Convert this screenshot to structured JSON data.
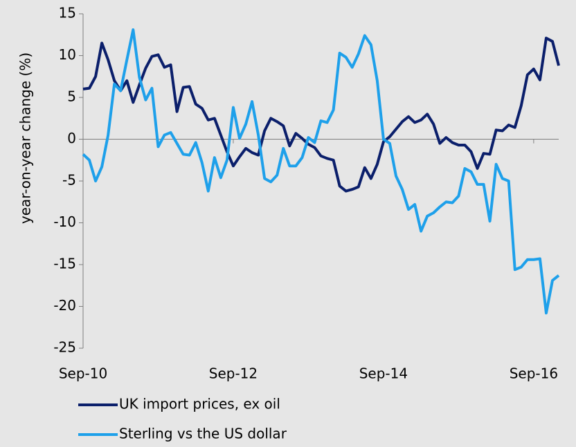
{
  "chart_data": {
    "type": "line",
    "y_label": "year-on-year change (%)",
    "categories": [
      "Sep-10",
      null,
      null,
      null,
      null,
      null,
      null,
      null,
      null,
      null,
      null,
      null,
      null,
      null,
      null,
      null,
      null,
      null,
      null,
      null,
      null,
      null,
      null,
      null,
      "Sep-12",
      null,
      null,
      null,
      null,
      null,
      null,
      null,
      null,
      null,
      null,
      null,
      null,
      null,
      null,
      null,
      null,
      null,
      null,
      null,
      null,
      null,
      null,
      null,
      "Sep-14",
      null,
      null,
      null,
      null,
      null,
      null,
      null,
      null,
      null,
      null,
      null,
      null,
      null,
      null,
      null,
      null,
      null,
      null,
      null,
      null,
      null,
      null,
      null,
      "Sep-16",
      null,
      null,
      null,
      null
    ],
    "series": [
      {
        "name": "UK import prices, ex oil",
        "color": "#0b1f6b",
        "values": [
          6,
          6.1,
          7.5,
          11.5,
          9.5,
          7,
          5.8,
          7,
          4.4,
          6.5,
          8.5,
          9.9,
          10.1,
          8.6,
          8.9,
          3.3,
          6.2,
          6.3,
          4.2,
          3.7,
          2.3,
          2.5,
          0.5,
          -1.5,
          -3.2,
          -2.1,
          -1.1,
          -1.6,
          -1.9,
          1,
          2.5,
          2.1,
          1.6,
          -0.8,
          0.7,
          0.1,
          -0.6,
          -1,
          -2,
          -2.3,
          -2.5,
          -5.6,
          -6.2,
          -6,
          -5.7,
          -3.4,
          -4.7,
          -3,
          -0.3,
          0.3,
          1.2,
          2.1,
          2.7,
          2,
          2.3,
          3,
          1.8,
          -0.5,
          0.2,
          -0.4,
          -0.7,
          -0.7,
          -1.5,
          -3.5,
          -1.7,
          -1.8,
          1.1,
          1,
          1.7,
          1.4,
          4,
          7.7,
          8.4,
          7.1,
          12.1,
          11.7,
          8.8
        ]
      },
      {
        "name": "Sterling vs the US dollar",
        "color": "#1ea0ea",
        "values": [
          -1.8,
          -2.5,
          -5,
          -3.3,
          0.5,
          6.6,
          5.8,
          9.5,
          13.1,
          7.4,
          4.7,
          6.1,
          -0.9,
          0.5,
          0.8,
          -0.5,
          -1.8,
          -1.9,
          -0.4,
          -2.8,
          -6.2,
          -2.2,
          -4.6,
          -2.5,
          3.8,
          0.1,
          1.8,
          4.5,
          0.5,
          -4.7,
          -5.1,
          -4.3,
          -1.1,
          -3.2,
          -3.2,
          -2.2,
          0.2,
          -0.4,
          2.2,
          2,
          3.5,
          10.3,
          9.8,
          8.6,
          10.2,
          12.4,
          11.3,
          7,
          0,
          -0.5,
          -4.4,
          -6,
          -8.4,
          -7.8,
          -11,
          -9.2,
          -8.8,
          -8.1,
          -7.5,
          -7.6,
          -6.8,
          -3.5,
          -3.9,
          -5.4,
          -5.4,
          -9.8,
          -3,
          -4.7,
          -5,
          -15.6,
          -15.3,
          -14.4,
          -14.4,
          -14.3,
          -20.8,
          -16.9,
          -16.3
        ]
      }
    ],
    "ylim": [
      -25,
      15
    ],
    "yticks": [
      -25,
      -20,
      -15,
      -10,
      -5,
      0,
      5,
      10,
      15
    ],
    "legend": "bottom"
  }
}
